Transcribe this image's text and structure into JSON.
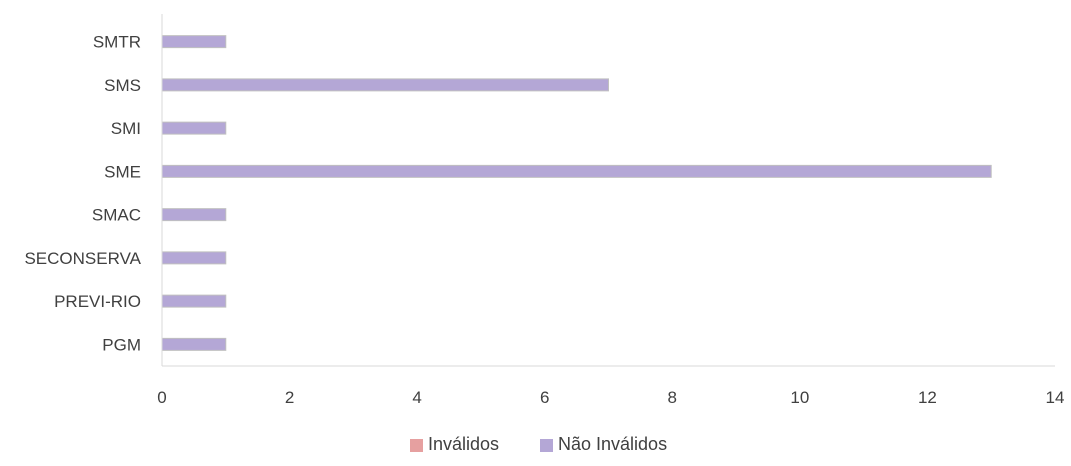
{
  "chart_data": {
    "type": "bar",
    "orientation": "horizontal",
    "categories": [
      "PGM",
      "PREVI-RIO",
      "SECONSERVA",
      "SMAC",
      "SME",
      "SMI",
      "SMS",
      "SMTR"
    ],
    "series": [
      {
        "name": "Inválidos",
        "values": [
          0,
          0,
          0,
          0,
          0,
          0,
          0,
          0
        ],
        "color": "#e6a0a0"
      },
      {
        "name": "Não Inválidos",
        "values": [
          1,
          1,
          1,
          1,
          13,
          1,
          7,
          1
        ],
        "color": "#b4a7d6"
      }
    ],
    "xlim": [
      0,
      14
    ],
    "xticks": [
      "0",
      "2",
      "4",
      "6",
      "8",
      "10",
      "12",
      "14"
    ],
    "title": "",
    "xlabel": "",
    "ylabel": "",
    "grid": false,
    "legend_position": "bottom",
    "colors": {
      "axis": "#d9d9d9",
      "text": "#404040",
      "bar_border": "#c0c0c0"
    }
  }
}
